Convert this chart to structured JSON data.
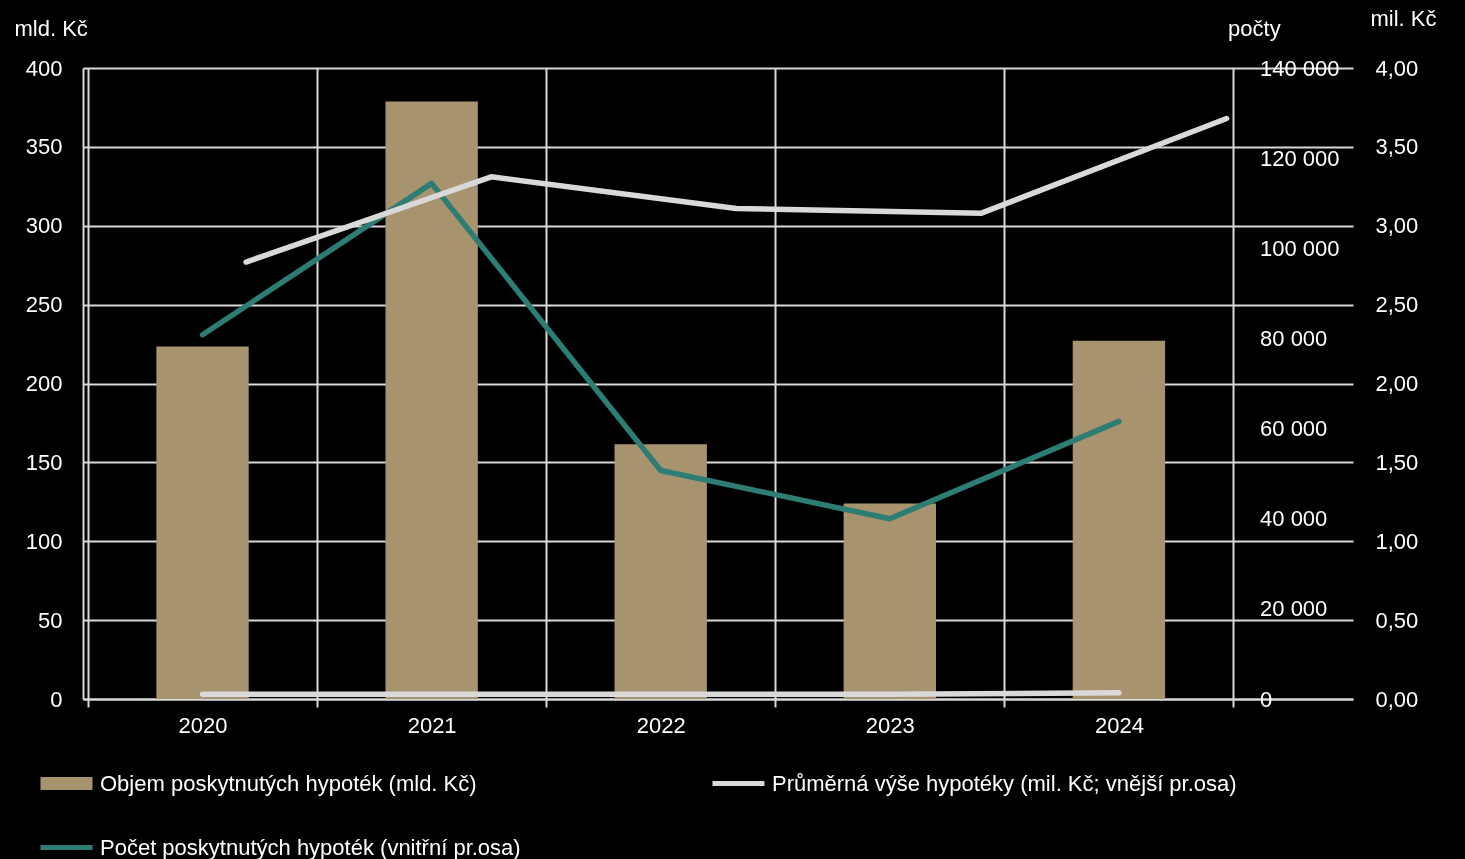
{
  "chart_data": {
    "type": "bar",
    "ylabel": "mld. Kč",
    "y2label": "počty",
    "y3label": "mil. Kč",
    "x": [
      2020,
      2021,
      2022,
      2023,
      2024
    ],
    "xlim": [
      2019.5,
      2025
    ],
    "xticks": [
      {
        "value": 2019.5,
        "label": null
      },
      2020,
      {
        "value": 2020.5,
        "label": null
      },
      2021,
      {
        "value": 2021.5,
        "label": null
      },
      2022,
      {
        "value": 2022.5,
        "label": null
      },
      2023,
      {
        "value": 2023.5,
        "label": null
      },
      2024,
      {
        "value": 2024.5,
        "label": null
      }
    ],
    "ylim": [
      0,
      400
    ],
    "yticks": [
      0,
      50,
      100,
      150,
      200,
      250,
      300,
      350,
      400
    ],
    "y2lim": [
      0,
      140000
    ],
    "y2ticks": [
      0,
      {
        "value": 20000,
        "label": "20 000"
      },
      {
        "value": 40000,
        "label": "40 000"
      },
      {
        "value": 60000,
        "label": "60 000"
      },
      {
        "value": 80000,
        "label": "80 000"
      },
      {
        "value": 100000,
        "label": "100 000"
      },
      {
        "value": 120000,
        "label": "120 000"
      },
      {
        "value": 140000,
        "label": "140 000"
      }
    ],
    "y3lim": [
      0,
      4
    ],
    "y3ticks": [
      {
        "value": 0,
        "label": "0,00"
      },
      {
        "value": 0.5,
        "label": "0,50"
      },
      {
        "value": 1,
        "label": "1,00"
      },
      {
        "value": 1.5,
        "label": "1,50"
      },
      {
        "value": 2,
        "label": "2,00"
      },
      {
        "value": 2.5,
        "label": "2,50"
      },
      {
        "value": 3,
        "label": "3,00"
      },
      {
        "value": 3.5,
        "label": "3,50"
      },
      {
        "value": 4,
        "label": "4,00"
      }
    ],
    "grid": true,
    "legend": "bottom",
    "line_style": "solid",
    "series": [
      {
        "name": "Objem poskytnutých hypoték (mld. Kč)",
        "color": "#a8936f",
        "values": [
          223.5,
          378.8,
          161.5,
          123.9,
          227.1
        ]
      },
      {
        "name": "Průměrná výše hypotéky (mil. Kč; vnější pr.osa)",
        "type": "line",
        "axis": "y3",
        "color": "#d9d9d9",
        "x": [
          2020.19,
          2021.26,
          2022.33,
          2023.4,
          2024.47
        ],
        "values": [
          2.77,
          3.31,
          3.11,
          3.08,
          3.68
        ]
      },
      {
        "name": "Počet poskytnutých hypoték (vnitřní pr.osa)",
        "type": "line",
        "axis": "y2",
        "color": "#2e7d75",
        "values": [
          80800,
          114400,
          50700,
          40000,
          61600
        ]
      },
      {
        "type": "line",
        "color": "#d9d9d9",
        "values": [
          3,
          3,
          3,
          3,
          4
        ]
      }
    ]
  }
}
